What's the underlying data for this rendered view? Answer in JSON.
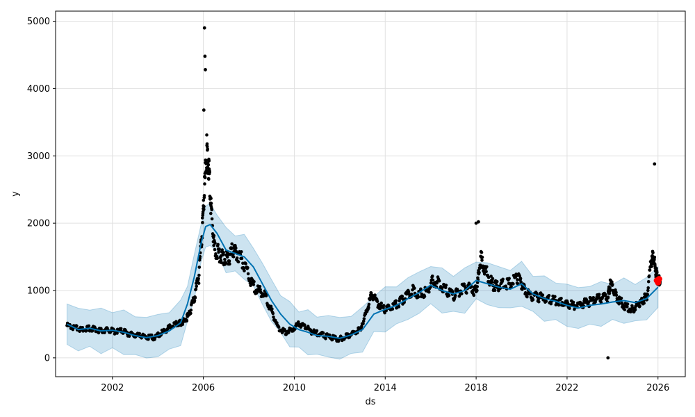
{
  "chart_data": {
    "type": "line",
    "title": "",
    "xlabel": "ds",
    "ylabel": "y",
    "xlim": [
      1999.5,
      2027.2
    ],
    "ylim": [
      -280,
      5150
    ],
    "x_ticks": [
      "2002",
      "2006",
      "2010",
      "2014",
      "2018",
      "2022",
      "2026"
    ],
    "y_ticks": [
      "0",
      "1000",
      "2000",
      "3000",
      "4000",
      "5000"
    ],
    "grid": true,
    "colors": {
      "forecast_line": "#0072B2",
      "uncertainty_band": "#0072B2",
      "observed_points": "#000000",
      "recent_points": "#ff0000"
    },
    "series": [
      {
        "kind": "forecast_trend",
        "x": [
          2000.0,
          2000.5,
          2001.0,
          2001.5,
          2002.0,
          2002.5,
          2003.0,
          2003.5,
          2004.0,
          2004.5,
          2005.0,
          2005.3,
          2005.6,
          2005.9,
          2006.1,
          2006.3,
          2006.6,
          2007.0,
          2007.4,
          2007.8,
          2008.2,
          2008.6,
          2009.0,
          2009.4,
          2009.8,
          2010.2,
          2010.6,
          2011.0,
          2011.5,
          2012.0,
          2012.5,
          2013.0,
          2013.5,
          2014.0,
          2014.5,
          2015.0,
          2015.5,
          2016.0,
          2016.5,
          2017.0,
          2017.5,
          2018.0,
          2018.5,
          2019.0,
          2019.5,
          2020.0,
          2020.5,
          2021.0,
          2021.5,
          2022.0,
          2022.5,
          2023.0,
          2023.5,
          2024.0,
          2024.5,
          2025.0,
          2025.5,
          2026.0
        ],
        "y": [
          500,
          420,
          440,
          400,
          410,
          380,
          330,
          300,
          330,
          400,
          520,
          800,
          1200,
          1700,
          1950,
          1980,
          1850,
          1600,
          1550,
          1500,
          1350,
          1100,
          850,
          650,
          500,
          420,
          380,
          330,
          320,
          290,
          340,
          420,
          650,
          720,
          780,
          880,
          970,
          1080,
          1000,
          950,
          1000,
          1150,
          1100,
          1050,
          1020,
          1100,
          950,
          880,
          840,
          780,
          740,
          780,
          800,
          830,
          850,
          820,
          880,
          1050
        ],
        "band_halfwidth": 300
      },
      {
        "kind": "observed_points",
        "x": [
          2000.0,
          2000.3,
          2000.6,
          2000.9,
          2001.2,
          2001.5,
          2001.8,
          2002.1,
          2002.4,
          2002.7,
          2003.0,
          2003.3,
          2003.6,
          2003.9,
          2004.2,
          2004.5,
          2004.8,
          2005.0,
          2005.2,
          2005.4,
          2005.6,
          2005.8,
          2005.95,
          2006.05,
          2006.15,
          2006.25,
          2006.35,
          2006.5,
          2006.7,
          2006.9,
          2007.1,
          2007.3,
          2007.5,
          2007.8,
          2008.1,
          2008.4,
          2008.7,
          2009.0,
          2009.3,
          2009.6,
          2009.9,
          2010.2,
          2010.5,
          2010.8,
          2011.1,
          2011.4,
          2011.7,
          2012.0,
          2012.3,
          2012.6,
          2012.9,
          2013.2,
          2013.4,
          2013.7,
          2014.0,
          2014.3,
          2014.6,
          2014.9,
          2015.2,
          2015.5,
          2015.8,
          2016.1,
          2016.4,
          2016.7,
          2017.0,
          2017.3,
          2017.6,
          2017.9,
          2018.05,
          2018.2,
          2018.4,
          2018.7,
          2018.9,
          2019.2,
          2019.5,
          2019.8,
          2020.0,
          2020.2,
          2020.5,
          2020.8,
          2021.1,
          2021.4,
          2021.7,
          2022.0,
          2022.3,
          2022.6,
          2022.9,
          2023.2,
          2023.5,
          2023.8,
          2023.9,
          2024.1,
          2024.3,
          2024.6,
          2024.9,
          2025.1,
          2025.3,
          2025.5,
          2025.7,
          2025.8,
          2025.9,
          2026.0
        ],
        "y": [
          480,
          450,
          420,
          440,
          430,
          400,
          420,
          390,
          400,
          360,
          330,
          320,
          300,
          310,
          380,
          450,
          500,
          520,
          560,
          650,
          900,
          1200,
          1900,
          2500,
          3100,
          2800,
          2200,
          1600,
          1550,
          1500,
          1450,
          1600,
          1550,
          1400,
          1100,
          1000,
          950,
          700,
          450,
          380,
          420,
          500,
          460,
          380,
          360,
          320,
          300,
          280,
          320,
          380,
          430,
          700,
          950,
          800,
          720,
          740,
          820,
          900,
          1000,
          950,
          980,
          1150,
          1100,
          1000,
          920,
          1000,
          1050,
          1000,
          1050,
          1500,
          1300,
          1100,
          1050,
          1100,
          1100,
          1200,
          1100,
          950,
          920,
          900,
          880,
          860,
          840,
          800,
          780,
          800,
          820,
          860,
          880,
          900,
          1100,
          950,
          850,
          750,
          720,
          800,
          850,
          900,
          1400,
          1500,
          1300,
          1150
        ]
      },
      {
        "kind": "outlier_points",
        "x": [
          2006.05,
          2006.07,
          2006.09,
          2006.02,
          2023.8,
          2025.85,
          2018.0,
          2018.1
        ],
        "y": [
          4900,
          4480,
          4280,
          3680,
          0,
          2880,
          2000,
          2020
        ]
      },
      {
        "kind": "recent_points",
        "x": [
          2025.95,
          2026.0,
          2026.05
        ],
        "y": [
          1150,
          1120,
          1170
        ]
      }
    ]
  }
}
